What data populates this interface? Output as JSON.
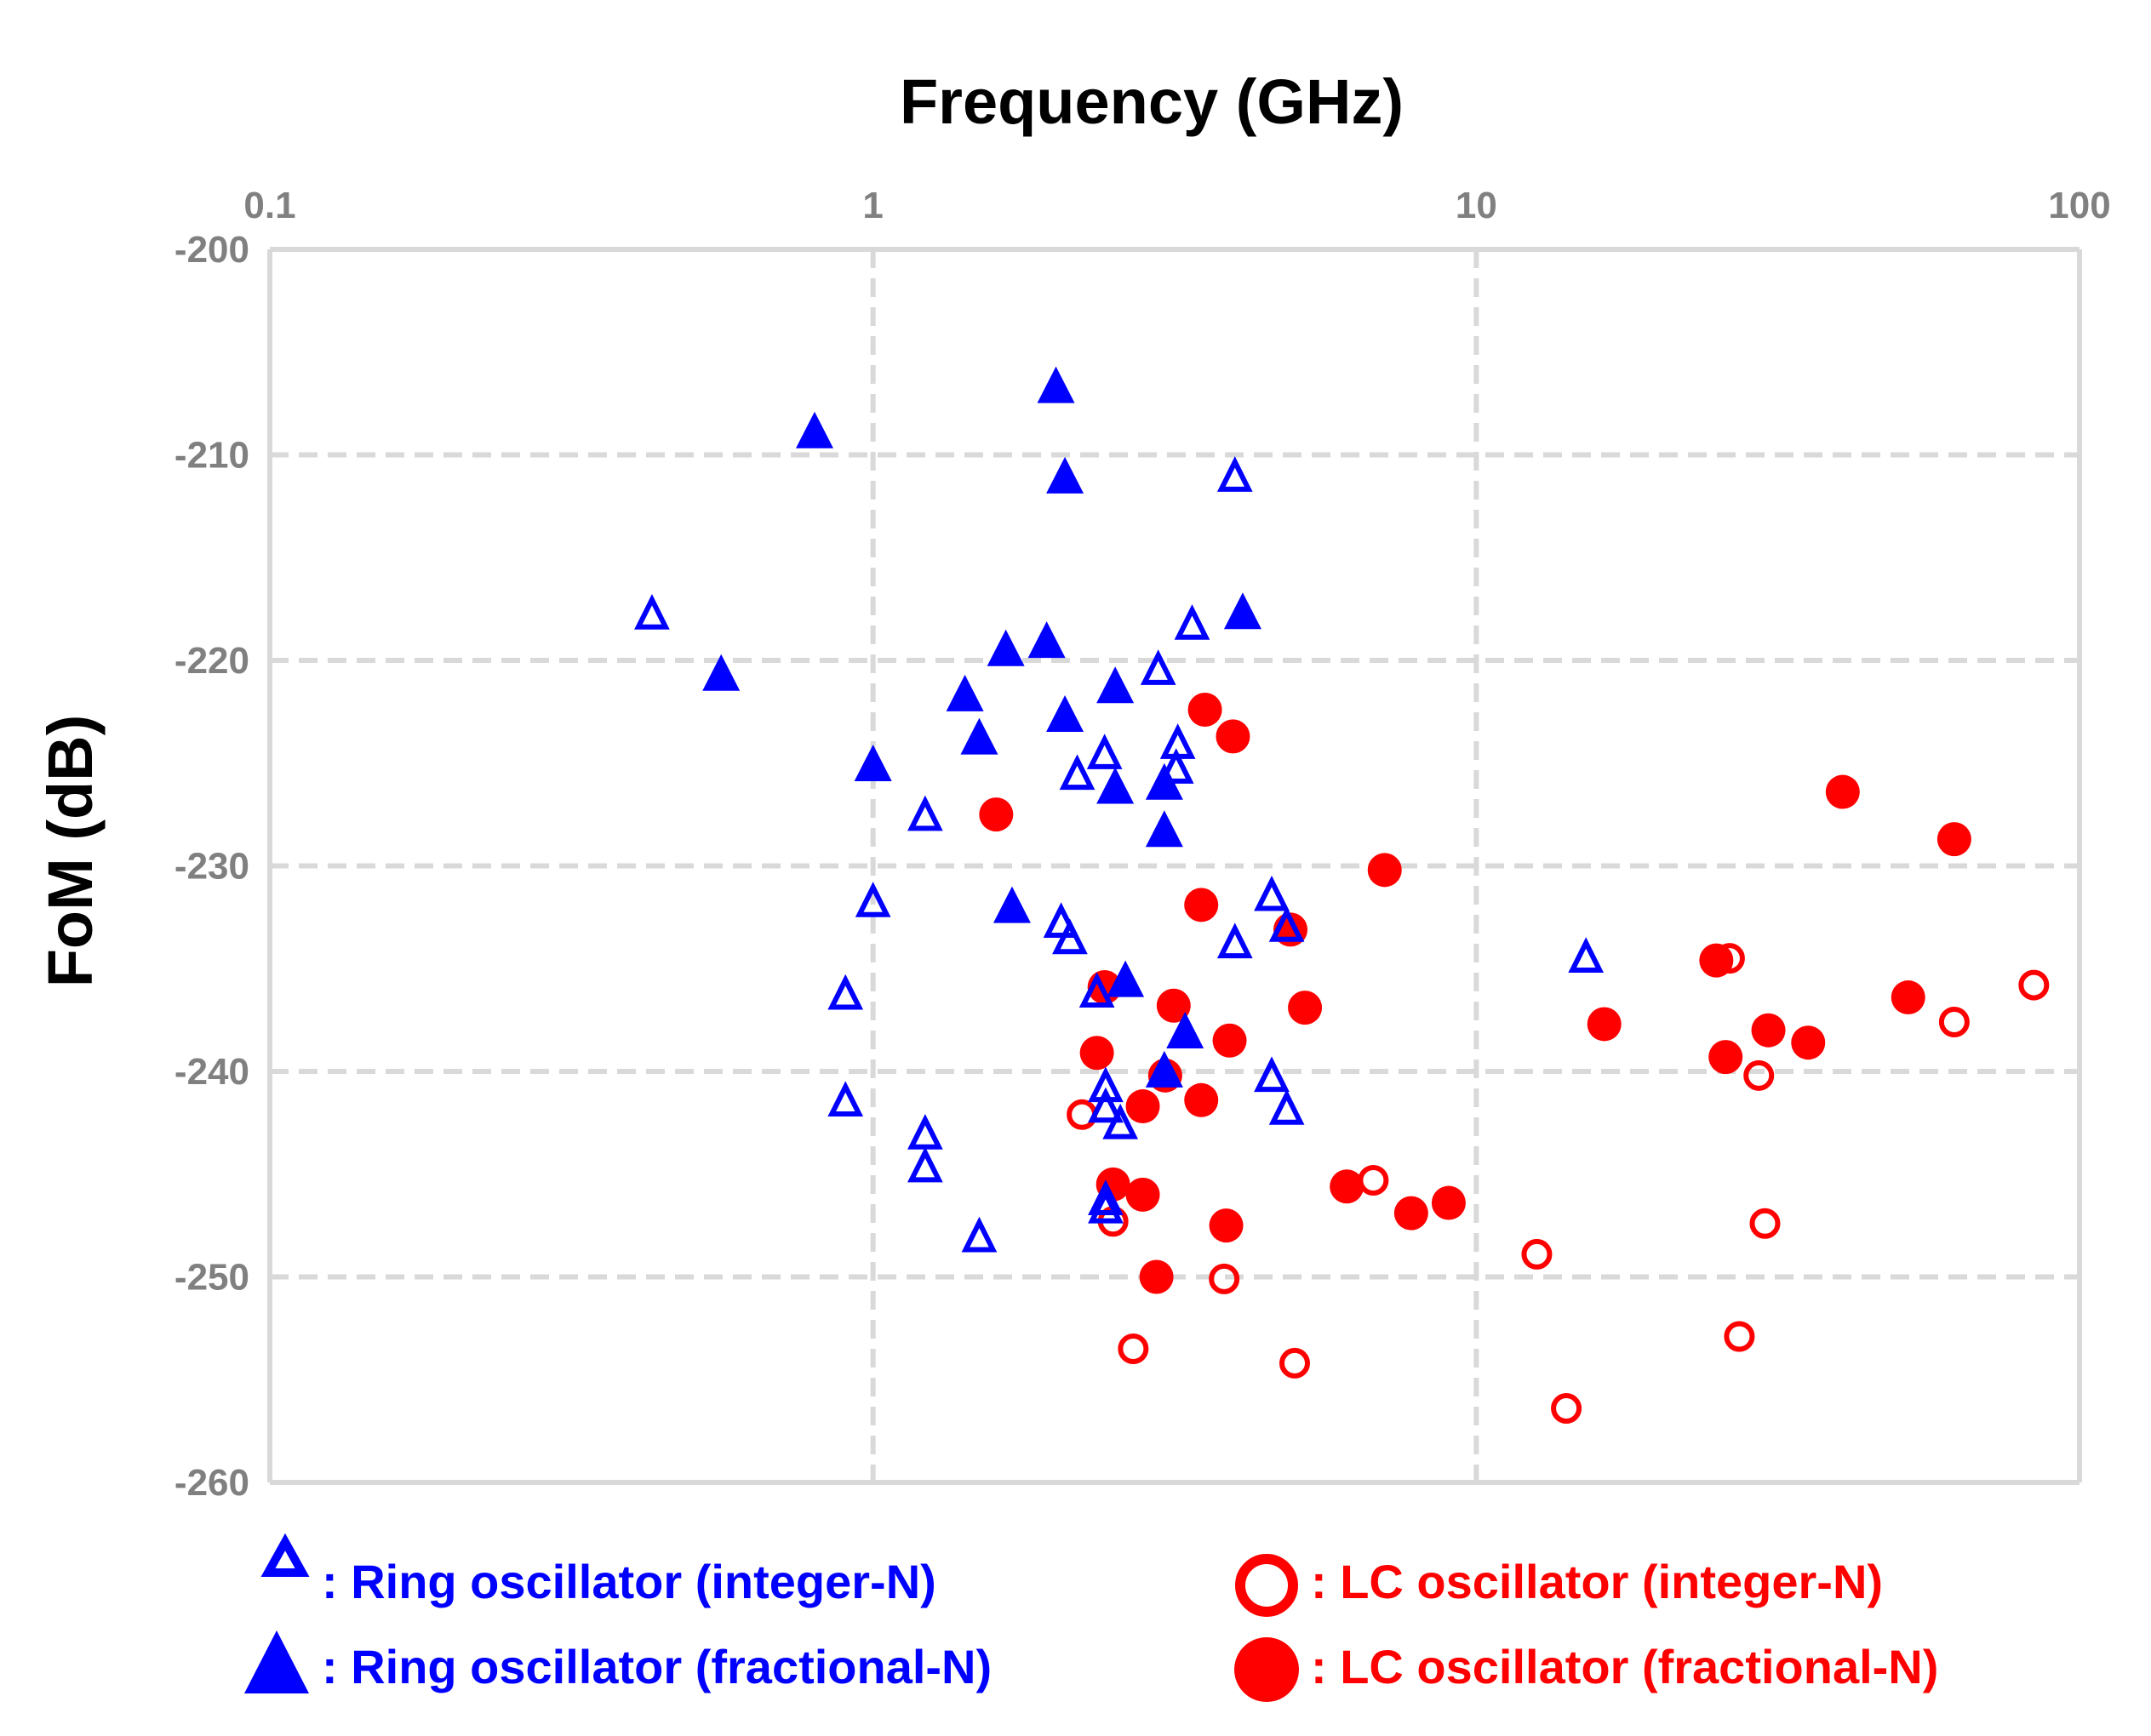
{
  "chart_data": {
    "type": "scatter",
    "xscale": "log",
    "title": "",
    "xlabel": "Frequency (GHz)",
    "ylabel": "FoM (dB)",
    "xlim": [
      0.1,
      100
    ],
    "ylim": [
      -260,
      -200
    ],
    "x_tick_labels": [
      "0.1",
      "1",
      "10",
      "100"
    ],
    "x_ticks": [
      0.1,
      1,
      10,
      100
    ],
    "y_tick_labels": [
      "-200",
      "-210",
      "-220",
      "-230",
      "-240",
      "-250",
      "-260"
    ],
    "y_ticks": [
      -200,
      -210,
      -220,
      -230,
      -240,
      -250,
      -260
    ],
    "grid": true,
    "x_axis_position": "top",
    "legend_position": "bottom",
    "colors": {
      "ring": "#0000FF",
      "lc": "#FF0000",
      "grid": "#D9D9D9",
      "axis": "#D9D9D9",
      "tick": "#808080"
    },
    "series": [
      {
        "name": ": Ring oscillator (integer-N)",
        "marker": "triangle-open",
        "color": "#0000FF",
        "points": [
          [
            0.43,
            -218
          ],
          [
            1.22,
            -227.8
          ],
          [
            1.0,
            -232
          ],
          [
            0.9,
            -236.5
          ],
          [
            0.9,
            -241.7
          ],
          [
            1.22,
            -243.3
          ],
          [
            1.22,
            -244.9
          ],
          [
            1.5,
            -248.3
          ],
          [
            2.18,
            -225.8
          ],
          [
            2.42,
            -224.8
          ],
          [
            2.35,
            -236.4
          ],
          [
            2.43,
            -241
          ],
          [
            2.43,
            -242
          ],
          [
            2.57,
            -242.8
          ],
          [
            2.43,
            -246.5
          ],
          [
            2.43,
            -246.9
          ],
          [
            2.97,
            -220.7
          ],
          [
            3.38,
            -218.5
          ],
          [
            3.2,
            -224.3
          ],
          [
            3.18,
            -225.5
          ],
          [
            3.98,
            -211.3
          ],
          [
            3.98,
            -234
          ],
          [
            4.58,
            -231.7
          ],
          [
            4.85,
            -233.2
          ],
          [
            4.58,
            -240.5
          ],
          [
            4.85,
            -242.1
          ],
          [
            2.05,
            -233
          ],
          [
            2.12,
            -233.8
          ],
          [
            15.2,
            -234.7
          ]
        ]
      },
      {
        "name": ": Ring oscillator (fractional-N)",
        "marker": "triangle-filled",
        "color": "#0000FF",
        "points": [
          [
            0.56,
            -220.9
          ],
          [
            0.8,
            -209.1
          ],
          [
            1.0,
            -225.3
          ],
          [
            1.42,
            -221.9
          ],
          [
            1.5,
            -224
          ],
          [
            1.66,
            -219.7
          ],
          [
            1.94,
            -219.3
          ],
          [
            2.01,
            -206.9
          ],
          [
            2.08,
            -211.3
          ],
          [
            2.08,
            -222.9
          ],
          [
            1.7,
            -232.2
          ],
          [
            2.52,
            -221.5
          ],
          [
            2.52,
            -226.4
          ],
          [
            2.62,
            -235.8
          ],
          [
            3.04,
            -226.2
          ],
          [
            3.04,
            -228.5
          ],
          [
            3.04,
            -240.2
          ],
          [
            3.29,
            -238.3
          ],
          [
            4.1,
            -217.9
          ]
        ]
      },
      {
        "name": ": LC oscillator (integer-N)",
        "marker": "circle-open",
        "color": "#FF0000",
        "points": [
          [
            2.22,
            -242.1
          ],
          [
            2.5,
            -247.3
          ],
          [
            2.7,
            -253.5
          ],
          [
            3.82,
            -250.1
          ],
          [
            5.0,
            -254.2
          ],
          [
            6.75,
            -245.3
          ],
          [
            12.6,
            -248.9
          ],
          [
            14.1,
            -256.4
          ],
          [
            26.3,
            -234.5
          ],
          [
            29.4,
            -240.2
          ],
          [
            30.1,
            -247.4
          ],
          [
            27.3,
            -252.9
          ],
          [
            62,
            -237.6
          ],
          [
            84,
            -235.8
          ]
        ]
      },
      {
        "name": ": LC oscillator (fractional-N)",
        "marker": "circle-filled",
        "color": "#FF0000",
        "points": [
          [
            1.6,
            -227.5
          ],
          [
            2.42,
            -235.9
          ],
          [
            2.35,
            -239.1
          ],
          [
            2.8,
            -241.7
          ],
          [
            2.5,
            -245.5
          ],
          [
            2.8,
            -246
          ],
          [
            3.05,
            -240.2
          ],
          [
            3.15,
            -236.8
          ],
          [
            2.95,
            -250
          ],
          [
            3.55,
            -222.4
          ],
          [
            3.95,
            -223.7
          ],
          [
            3.5,
            -231.9
          ],
          [
            3.5,
            -241.4
          ],
          [
            3.9,
            -238.5
          ],
          [
            3.85,
            -247.5
          ],
          [
            4.92,
            -233.1
          ],
          [
            5.2,
            -236.9
          ],
          [
            6.1,
            -245.6
          ],
          [
            7.05,
            -230.2
          ],
          [
            7.8,
            -246.9
          ],
          [
            9.0,
            -246.4
          ],
          [
            16.3,
            -237.7
          ],
          [
            25.0,
            -234.6
          ],
          [
            25.9,
            -239.3
          ],
          [
            30.5,
            -238
          ],
          [
            35.5,
            -238.6
          ],
          [
            40.5,
            -226.4
          ],
          [
            52,
            -236.4
          ],
          [
            62,
            -228.7
          ]
        ]
      }
    ]
  }
}
